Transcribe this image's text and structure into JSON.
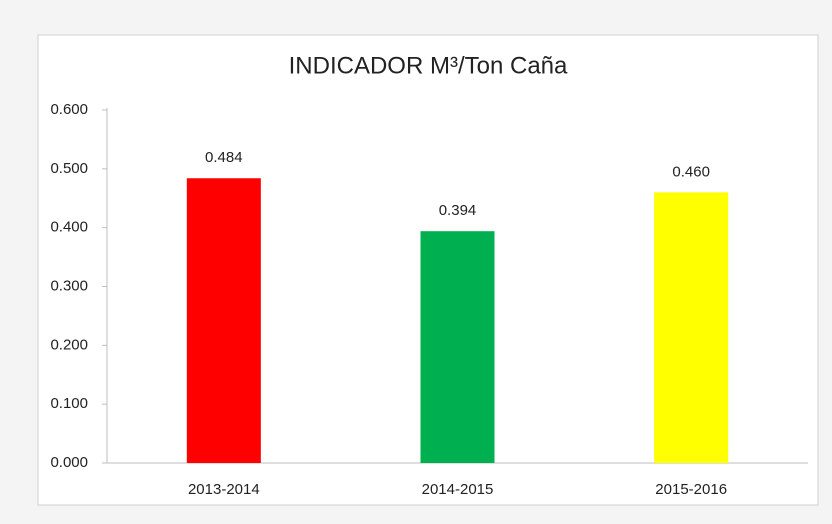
{
  "chart_data": {
    "type": "bar",
    "title": "INDICADOR M³/Ton Caña",
    "categories": [
      "2013-2014",
      "2014-2015",
      "2015-2016"
    ],
    "values": [
      0.484,
      0.394,
      0.46
    ],
    "value_labels": [
      "0.484",
      "0.394",
      "0.460"
    ],
    "colors": [
      "#ff0000",
      "#00b050",
      "#ffff00"
    ],
    "ylim": [
      0,
      0.6
    ],
    "yticks": [
      {
        "value": 0,
        "label": "0.000"
      },
      {
        "value": 0.1,
        "label": "0.100"
      },
      {
        "value": 0.2,
        "label": "0.200"
      },
      {
        "value": 0.3,
        "label": "0.300"
      },
      {
        "value": 0.4,
        "label": "0.400"
      },
      {
        "value": 0.5,
        "label": "0.500"
      },
      {
        "value": 0.6,
        "label": "0.600"
      }
    ],
    "grid": false
  }
}
